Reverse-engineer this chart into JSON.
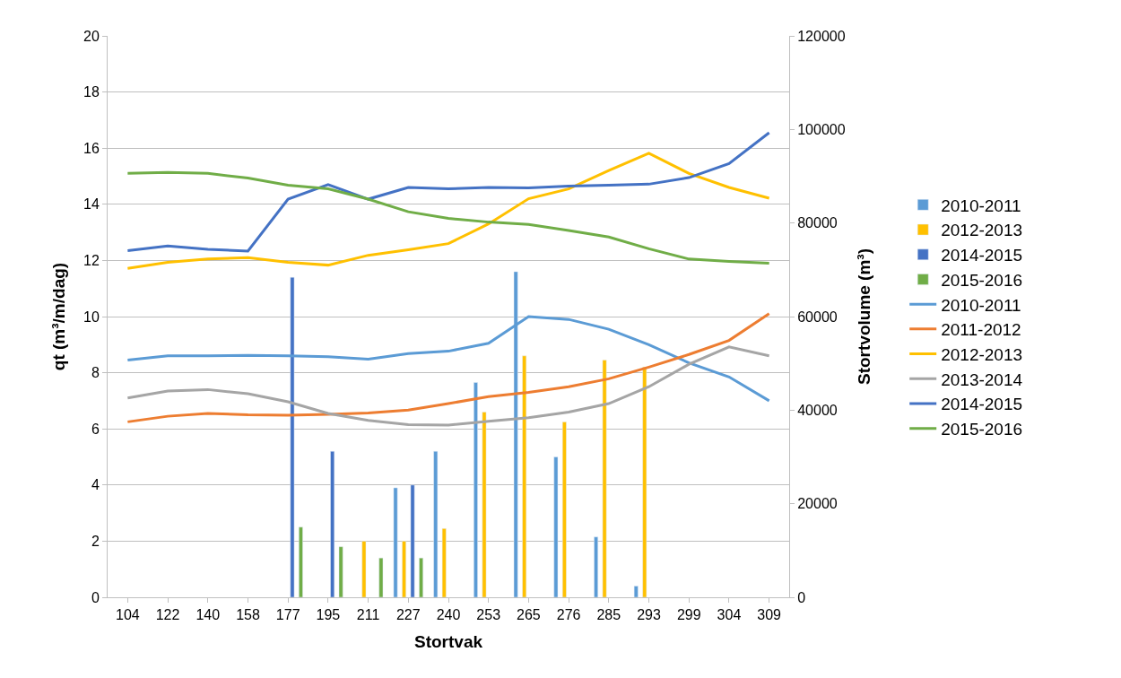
{
  "chart_data": {
    "type": "bar",
    "xlabel": "Stortvak",
    "ylabel": "qt (m³/m/dag)",
    "y2label": "Stortvolume (m³)",
    "categories": [
      "104",
      "122",
      "140",
      "158",
      "177",
      "195",
      "211",
      "227",
      "240",
      "253",
      "265",
      "276",
      "285",
      "293",
      "299",
      "304",
      "309"
    ],
    "ylim": [
      0,
      20
    ],
    "yticks": [
      0,
      2,
      4,
      6,
      8,
      10,
      12,
      14,
      16,
      18,
      20
    ],
    "y2lim": [
      0,
      120000
    ],
    "y2ticks": [
      0,
      20000,
      40000,
      60000,
      80000,
      100000,
      120000
    ],
    "grid": "y",
    "legend": "right",
    "series": [
      {
        "name": "2010-2011",
        "color": "#5b9bd5",
        "values": [
          null,
          null,
          null,
          null,
          null,
          null,
          null,
          3.9,
          5.2,
          7.65,
          11.6,
          5.0,
          2.15,
          0.4,
          null,
          null,
          null
        ]
      },
      {
        "name": "2012-2013",
        "color": "#ffc000",
        "values": [
          null,
          null,
          null,
          null,
          null,
          null,
          2.0,
          2.0,
          2.45,
          6.6,
          8.6,
          6.25,
          8.45,
          8.2,
          null,
          null,
          null
        ]
      },
      {
        "name": "2014-2015",
        "color": "#4472c4",
        "values": [
          null,
          null,
          null,
          null,
          11.4,
          5.2,
          null,
          4.0,
          null,
          null,
          null,
          null,
          null,
          null,
          null,
          null,
          null
        ]
      },
      {
        "name": "2015-2016",
        "color": "#70ad47",
        "values": [
          null,
          null,
          null,
          null,
          2.5,
          1.8,
          1.4,
          1.4,
          null,
          null,
          null,
          null,
          null,
          null,
          null,
          null,
          null
        ]
      },
      {
        "name": "2010-2011",
        "type": "line",
        "axis": "y2",
        "color": "#5b9bd5",
        "values": [
          50700,
          51600,
          51600,
          51700,
          51600,
          51400,
          50900,
          52100,
          52600,
          54300,
          60000,
          59400,
          57300,
          54000,
          50100,
          47100,
          42000
        ]
      },
      {
        "name": "2011-2012",
        "type": "line",
        "axis": "y2",
        "color": "#ed7d31",
        "values": [
          37500,
          38700,
          39300,
          39000,
          38900,
          39100,
          39400,
          40000,
          41400,
          42900,
          43800,
          45000,
          46700,
          49200,
          51900,
          54900,
          60600
        ]
      },
      {
        "name": "2012-2013",
        "type": "line",
        "axis": "y2",
        "color": "#ffc000",
        "values": [
          70300,
          71600,
          72300,
          72600,
          71600,
          71000,
          73100,
          74300,
          75600,
          79800,
          85200,
          87300,
          91200,
          94900,
          90600,
          87600,
          85300
        ]
      },
      {
        "name": "2013-2014",
        "type": "line",
        "axis": "y2",
        "color": "#a5a5a5",
        "values": [
          42600,
          44100,
          44400,
          43500,
          41800,
          39300,
          37800,
          36900,
          36800,
          37600,
          38400,
          39600,
          41400,
          45000,
          49800,
          53500,
          51600
        ]
      },
      {
        "name": "2014-2015",
        "type": "line",
        "axis": "y2",
        "color": "#4472c4",
        "values": [
          74100,
          75100,
          74400,
          74000,
          85100,
          88200,
          85100,
          87600,
          87300,
          87600,
          87500,
          87900,
          88100,
          88300,
          89700,
          92700,
          99300
        ]
      },
      {
        "name": "2015-2016",
        "type": "line",
        "axis": "y2",
        "color": "#70ad47",
        "values": [
          90600,
          90800,
          90600,
          89600,
          88100,
          87300,
          85100,
          82400,
          81000,
          80200,
          79700,
          78400,
          77000,
          74500,
          72300,
          71800,
          71400
        ]
      }
    ]
  }
}
